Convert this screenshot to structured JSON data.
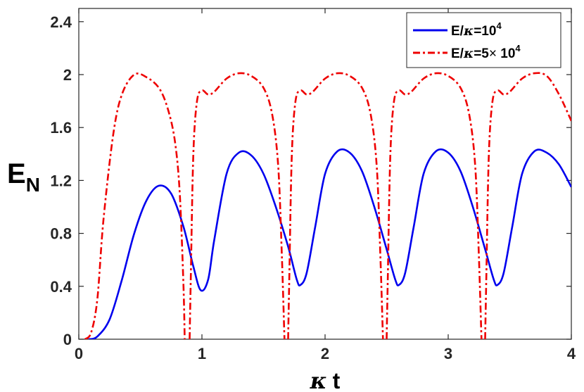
{
  "chart_data": {
    "type": "line",
    "xlabel": {
      "kappa": "κ",
      "t": "t"
    },
    "ylabel": {
      "main": "E",
      "sub": "N"
    },
    "xlim": [
      0,
      4
    ],
    "ylim": [
      0,
      2.5
    ],
    "xticks": [
      0,
      1,
      2,
      3,
      4
    ],
    "xtick_labels": [
      "0",
      "1",
      "2",
      "3",
      "4"
    ],
    "yticks": [
      0,
      0.4,
      0.8,
      1.2,
      1.6,
      2,
      2.4
    ],
    "ytick_labels": [
      "0",
      "0.4",
      "0.8",
      "1.2",
      "1.6",
      "2",
      "2.4"
    ],
    "grid": false,
    "legend_position": "top-right",
    "series": [
      {
        "name": "E/κ=10^4",
        "legend": {
          "prefix": "E/",
          "kappa": "κ",
          "mid": "=10",
          "sup": "4"
        },
        "color": "#0000ee",
        "style": "solid",
        "points": [
          [
            0.08,
            0
          ],
          [
            0.15,
            0.02
          ],
          [
            0.25,
            0.15
          ],
          [
            0.35,
            0.45
          ],
          [
            0.45,
            0.8
          ],
          [
            0.55,
            1.05
          ],
          [
            0.65,
            1.16
          ],
          [
            0.75,
            1.1
          ],
          [
            0.85,
            0.85
          ],
          [
            0.93,
            0.55
          ],
          [
            0.99,
            0.37
          ],
          [
            1.05,
            0.45
          ],
          [
            1.1,
            0.75
          ],
          [
            1.2,
            1.25
          ],
          [
            1.3,
            1.41
          ],
          [
            1.4,
            1.39
          ],
          [
            1.5,
            1.25
          ],
          [
            1.6,
            1.0
          ],
          [
            1.7,
            0.7
          ],
          [
            1.77,
            0.45
          ],
          [
            1.8,
            0.41
          ],
          [
            1.85,
            0.5
          ],
          [
            1.92,
            0.85
          ],
          [
            2.0,
            1.25
          ],
          [
            2.1,
            1.42
          ],
          [
            2.2,
            1.41
          ],
          [
            2.3,
            1.27
          ],
          [
            2.4,
            1.0
          ],
          [
            2.5,
            0.68
          ],
          [
            2.57,
            0.45
          ],
          [
            2.6,
            0.41
          ],
          [
            2.65,
            0.5
          ],
          [
            2.72,
            0.85
          ],
          [
            2.8,
            1.25
          ],
          [
            2.9,
            1.42
          ],
          [
            3.0,
            1.41
          ],
          [
            3.1,
            1.27
          ],
          [
            3.2,
            1.0
          ],
          [
            3.3,
            0.68
          ],
          [
            3.37,
            0.45
          ],
          [
            3.4,
            0.41
          ],
          [
            3.45,
            0.5
          ],
          [
            3.52,
            0.85
          ],
          [
            3.6,
            1.25
          ],
          [
            3.7,
            1.42
          ],
          [
            3.8,
            1.41
          ],
          [
            3.9,
            1.32
          ],
          [
            4.0,
            1.15
          ]
        ]
      },
      {
        "name": "E/κ=5×10^4",
        "legend": {
          "prefix": "E/",
          "kappa": "κ",
          "mid": "=5",
          "times": "×",
          "ten": " 10",
          "sup": "4"
        },
        "color": "#ee0000",
        "style": "dashdot",
        "points": [
          [
            0.05,
            0
          ],
          [
            0.1,
            0.05
          ],
          [
            0.15,
            0.3
          ],
          [
            0.2,
            0.9
          ],
          [
            0.28,
            1.55
          ],
          [
            0.35,
            1.85
          ],
          [
            0.45,
            2.0
          ],
          [
            0.55,
            1.98
          ],
          [
            0.65,
            1.9
          ],
          [
            0.72,
            1.75
          ],
          [
            0.78,
            1.5
          ],
          [
            0.82,
            1.1
          ],
          [
            0.85,
            0.4
          ],
          [
            0.86,
            0
          ],
          null,
          [
            0.9,
            0
          ],
          [
            0.91,
            0.5
          ],
          [
            0.93,
            1.4
          ],
          [
            0.96,
            1.8
          ],
          [
            1.0,
            1.88
          ],
          [
            1.05,
            1.85
          ],
          [
            1.1,
            1.87
          ],
          [
            1.2,
            1.97
          ],
          [
            1.3,
            2.01
          ],
          [
            1.4,
            1.99
          ],
          [
            1.5,
            1.9
          ],
          [
            1.57,
            1.7
          ],
          [
            1.62,
            1.3
          ],
          [
            1.65,
            0.6
          ],
          [
            1.67,
            0
          ],
          null,
          [
            1.7,
            0
          ],
          [
            1.71,
            0.5
          ],
          [
            1.73,
            1.4
          ],
          [
            1.76,
            1.8
          ],
          [
            1.8,
            1.88
          ],
          [
            1.85,
            1.85
          ],
          [
            1.9,
            1.87
          ],
          [
            2.0,
            1.97
          ],
          [
            2.1,
            2.01
          ],
          [
            2.2,
            1.99
          ],
          [
            2.3,
            1.9
          ],
          [
            2.37,
            1.7
          ],
          [
            2.42,
            1.3
          ],
          [
            2.45,
            0.6
          ],
          [
            2.47,
            0
          ],
          null,
          [
            2.5,
            0
          ],
          [
            2.51,
            0.5
          ],
          [
            2.53,
            1.4
          ],
          [
            2.56,
            1.8
          ],
          [
            2.6,
            1.88
          ],
          [
            2.65,
            1.85
          ],
          [
            2.7,
            1.87
          ],
          [
            2.8,
            1.97
          ],
          [
            2.9,
            2.01
          ],
          [
            3.0,
            1.99
          ],
          [
            3.1,
            1.9
          ],
          [
            3.17,
            1.7
          ],
          [
            3.22,
            1.3
          ],
          [
            3.25,
            0.6
          ],
          [
            3.27,
            0
          ],
          null,
          [
            3.3,
            0
          ],
          [
            3.31,
            0.5
          ],
          [
            3.33,
            1.4
          ],
          [
            3.36,
            1.8
          ],
          [
            3.4,
            1.88
          ],
          [
            3.45,
            1.85
          ],
          [
            3.5,
            1.87
          ],
          [
            3.6,
            1.97
          ],
          [
            3.7,
            2.01
          ],
          [
            3.8,
            1.99
          ],
          [
            3.9,
            1.85
          ],
          [
            4.0,
            1.65
          ]
        ]
      }
    ]
  }
}
